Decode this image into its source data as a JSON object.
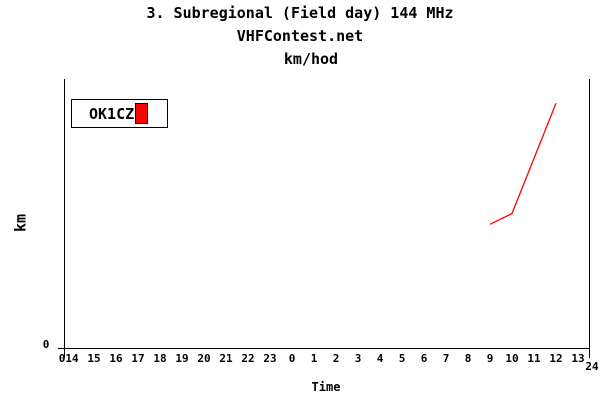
{
  "titles": {
    "line1": "3. Subregional (Field day) 144 MHz",
    "line2": "VHFContest.net",
    "line3": "km/hod"
  },
  "axes": {
    "x_title": "Time",
    "y_title": "km",
    "y_zero_label": "0",
    "x_origin_label": "0",
    "x_end_label": "24"
  },
  "legend": {
    "entries": [
      {
        "label": "OK1CZ",
        "color": "#ff0000"
      }
    ]
  },
  "colors": {
    "axis": "#000000",
    "background": "#ffffff",
    "series_red": "#ff0000"
  },
  "chart_data": {
    "type": "line",
    "title": "3. Subregional (Field day) 144 MHz",
    "subtitle": "VHFContest.net",
    "unit_label": "km/hod",
    "xlabel": "Time",
    "ylabel": "km",
    "grid": false,
    "legend_position": "top-left",
    "x_axis": {
      "start_label": "0",
      "end_label": "24",
      "hour_labels": [
        "14",
        "15",
        "16",
        "17",
        "18",
        "19",
        "20",
        "21",
        "22",
        "23",
        "0",
        "1",
        "2",
        "3",
        "4",
        "5",
        "6",
        "7",
        "8",
        "9",
        "10",
        "11",
        "12",
        "13"
      ],
      "note": "time of day, contest runs 14:00 to 14:00 next day (0-24 elapsed hours)"
    },
    "y_axis": {
      "tick_labels": [
        "0"
      ],
      "note": "km axis, only zero labeled; values estimated as fraction of axis height"
    },
    "series": [
      {
        "name": "OK1CZ",
        "color": "#ff0000",
        "points": [
          {
            "hour_label": "9",
            "elapsed_hours": 19,
            "value_frac": 0.46
          },
          {
            "hour_label": "10",
            "elapsed_hours": 20,
            "value_frac": 0.5
          },
          {
            "hour_label": "12",
            "elapsed_hours": 22,
            "value_frac": 0.91
          }
        ]
      }
    ]
  }
}
